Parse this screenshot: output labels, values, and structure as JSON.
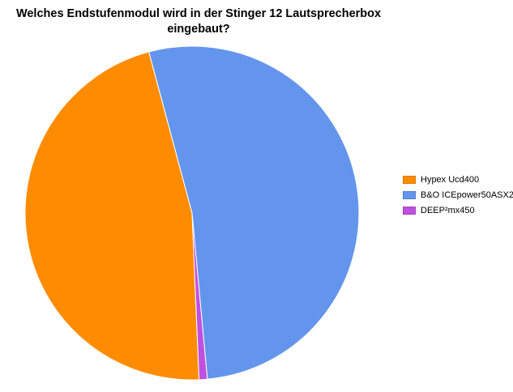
{
  "chart_data": {
    "type": "pie",
    "title": "Welches Endstufenmodul wird in der Stinger 12 Lautsprecherbox\neingebaut?",
    "categories": [
      "Hypex Ucd400",
      "B&O ICEpower50ASX2",
      "DEEP²mx450"
    ],
    "values": [
      46.5,
      52.7,
      0.8
    ],
    "colors": [
      "#ff8c00",
      "#6495ed",
      "#c050e0"
    ],
    "legend_position": "right"
  }
}
